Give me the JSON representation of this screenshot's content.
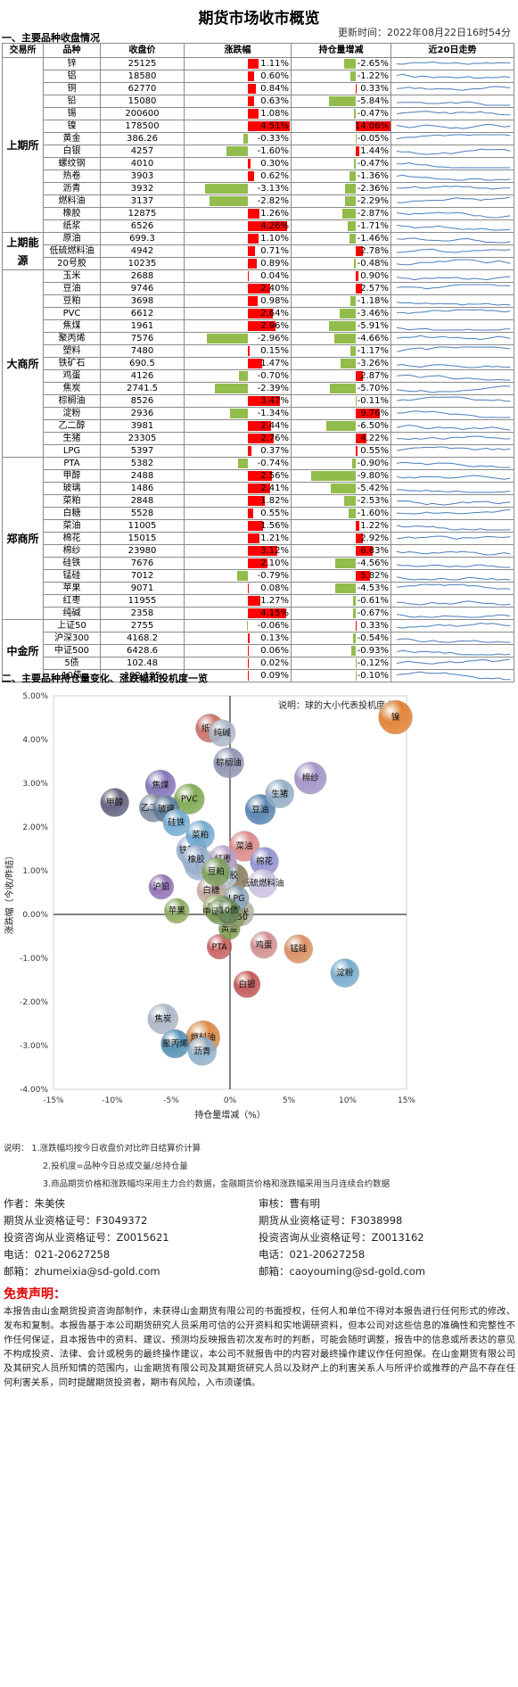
{
  "title": "期货市场收市概览",
  "update_time": "更新时间：2022年08月22日16时54分",
  "section1_title": "一、主要品种收盘情况",
  "section2_title": "二、主要品种持仓量变化、涨跌幅和投机度一览",
  "table": {
    "headers": [
      "交易所",
      "品种",
      "收盘价",
      "涨跌幅",
      "持仓量增减",
      "近20日走势"
    ],
    "groups": [
      {
        "exchange": "上期所",
        "rows": [
          {
            "name": "锌",
            "price": "25125",
            "pct": "1.11%",
            "oi": "-2.65%"
          },
          {
            "name": "铝",
            "price": "18580",
            "pct": "0.60%",
            "oi": "-1.22%"
          },
          {
            "name": "铜",
            "price": "62770",
            "pct": "0.84%",
            "oi": "0.33%"
          },
          {
            "name": "铅",
            "price": "15080",
            "pct": "0.63%",
            "oi": "-5.84%"
          },
          {
            "name": "锡",
            "price": "200600",
            "pct": "1.08%",
            "oi": "-0.47%"
          },
          {
            "name": "镍",
            "price": "178500",
            "pct": "4.51%",
            "oi": "14.06%"
          },
          {
            "name": "黄金",
            "price": "386.26",
            "pct": "-0.33%",
            "oi": "-0.05%"
          },
          {
            "name": "白银",
            "price": "4257",
            "pct": "-1.60%",
            "oi": "1.44%"
          },
          {
            "name": "螺纹钢",
            "price": "4010",
            "pct": "0.30%",
            "oi": "-0.47%"
          },
          {
            "name": "热卷",
            "price": "3903",
            "pct": "0.62%",
            "oi": "-1.36%"
          },
          {
            "name": "沥青",
            "price": "3932",
            "pct": "-3.13%",
            "oi": "-2.36%"
          },
          {
            "name": "燃料油",
            "price": "3137",
            "pct": "-2.82%",
            "oi": "-2.29%"
          },
          {
            "name": "橡胶",
            "price": "12875",
            "pct": "1.26%",
            "oi": "-2.87%"
          },
          {
            "name": "纸浆",
            "price": "6526",
            "pct": "4.26%",
            "oi": "-1.71%"
          }
        ]
      },
      {
        "exchange": "上期能源",
        "rows": [
          {
            "name": "原油",
            "price": "699.3",
            "pct": "1.10%",
            "oi": "-1.46%"
          },
          {
            "name": "低硫燃料油",
            "price": "4942",
            "pct": "0.71%",
            "oi": "2.78%"
          },
          {
            "name": "20号胶",
            "price": "10235",
            "pct": "0.89%",
            "oi": "-0.48%"
          }
        ]
      },
      {
        "exchange": "大商所",
        "rows": [
          {
            "name": "玉米",
            "price": "2688",
            "pct": "0.04%",
            "oi": "0.90%"
          },
          {
            "name": "豆油",
            "price": "9746",
            "pct": "2.40%",
            "oi": "2.57%"
          },
          {
            "name": "豆粕",
            "price": "3698",
            "pct": "0.98%",
            "oi": "-1.18%"
          },
          {
            "name": "PVC",
            "price": "6612",
            "pct": "2.64%",
            "oi": "-3.46%"
          },
          {
            "name": "焦煤",
            "price": "1961",
            "pct": "2.96%",
            "oi": "-5.91%"
          },
          {
            "name": "聚丙烯",
            "price": "7576",
            "pct": "-2.96%",
            "oi": "-4.66%"
          },
          {
            "name": "塑料",
            "price": "7480",
            "pct": "0.15%",
            "oi": "-1.17%"
          },
          {
            "name": "铁矿石",
            "price": "690.5",
            "pct": "1.47%",
            "oi": "-3.26%"
          },
          {
            "name": "鸡蛋",
            "price": "4126",
            "pct": "-0.70%",
            "oi": "2.87%"
          },
          {
            "name": "焦炭",
            "price": "2741.5",
            "pct": "-2.39%",
            "oi": "-5.70%"
          },
          {
            "name": "棕榈油",
            "price": "8526",
            "pct": "3.47%",
            "oi": "-0.11%"
          },
          {
            "name": "淀粉",
            "price": "2936",
            "pct": "-1.34%",
            "oi": "9.76%"
          },
          {
            "name": "乙二醇",
            "price": "3981",
            "pct": "2.44%",
            "oi": "-6.50%"
          },
          {
            "name": "生猪",
            "price": "23305",
            "pct": "2.76%",
            "oi": "4.22%"
          },
          {
            "name": "LPG",
            "price": "5397",
            "pct": "0.37%",
            "oi": "0.55%"
          }
        ]
      },
      {
        "exchange": "郑商所",
        "rows": [
          {
            "name": "PTA",
            "price": "5382",
            "pct": "-0.74%",
            "oi": "-0.90%"
          },
          {
            "name": "甲醇",
            "price": "2488",
            "pct": "2.56%",
            "oi": "-9.80%"
          },
          {
            "name": "玻璃",
            "price": "1486",
            "pct": "2.41%",
            "oi": "-5.42%"
          },
          {
            "name": "菜粕",
            "price": "2848",
            "pct": "1.82%",
            "oi": "-2.53%"
          },
          {
            "name": "白糖",
            "price": "5528",
            "pct": "0.55%",
            "oi": "-1.60%"
          },
          {
            "name": "菜油",
            "price": "11005",
            "pct": "1.56%",
            "oi": "1.22%"
          },
          {
            "name": "棉花",
            "price": "15015",
            "pct": "1.21%",
            "oi": "2.92%"
          },
          {
            "name": "棉纱",
            "price": "23980",
            "pct": "3.12%",
            "oi": "6.83%"
          },
          {
            "name": "硅铁",
            "price": "7676",
            "pct": "2.10%",
            "oi": "-4.56%"
          },
          {
            "name": "锰硅",
            "price": "7012",
            "pct": "-0.79%",
            "oi": "5.82%"
          },
          {
            "name": "苹果",
            "price": "9071",
            "pct": "0.08%",
            "oi": "-4.53%"
          },
          {
            "name": "红枣",
            "price": "11955",
            "pct": "1.27%",
            "oi": "-0.61%"
          },
          {
            "name": "纯碱",
            "price": "2358",
            "pct": "4.15%",
            "oi": "-0.67%"
          }
        ]
      },
      {
        "exchange": "中金所",
        "rows": [
          {
            "name": "上证50",
            "price": "2755",
            "pct": "-0.06%",
            "oi": "0.33%"
          },
          {
            "name": "沪深300",
            "price": "4168.2",
            "pct": "0.13%",
            "oi": "-0.54%"
          },
          {
            "name": "中证500",
            "price": "6428.6",
            "pct": "0.06%",
            "oi": "-0.93%"
          },
          {
            "name": "5债",
            "price": "102.48",
            "pct": "0.02%",
            "oi": "-0.12%"
          },
          {
            "name": "10债",
            "price": "102.195",
            "pct": "0.09%",
            "oi": "-0.10%"
          }
        ]
      }
    ]
  },
  "chart_data": {
    "type": "scatter",
    "note": "说明：球的大小代表投机度大小",
    "xlabel": "持仓量增减（%）",
    "ylabel": "涨跌幅（今收/昨结）",
    "xlim": [
      -15,
      15
    ],
    "ylim": [
      -4,
      5
    ],
    "x_ticks": [
      "-15%",
      "-10%",
      "-5%",
      "0%",
      "5%",
      "10%",
      "15%"
    ],
    "y_ticks": [
      "-4.00%",
      "-3.00%",
      "-2.00%",
      "-1.00%",
      "0.00%",
      "1.00%",
      "2.00%",
      "3.00%",
      "4.00%",
      "5.00%"
    ],
    "grid": false,
    "points": [
      {
        "label": "镍",
        "x": 14.06,
        "y": 4.51,
        "size": 1.3,
        "color": "#e07b2a"
      },
      {
        "label": "纸浆",
        "x": -1.71,
        "y": 4.26,
        "size": 1.0,
        "color": "#c66b63"
      },
      {
        "label": "沪铅",
        "x": -5.84,
        "y": 0.63,
        "size": 0.8,
        "color": "#8e6bb0"
      },
      {
        "label": "焦煤",
        "x": -5.91,
        "y": 2.96,
        "size": 1.1,
        "color": "#7e6fb6"
      },
      {
        "label": "棕榈油",
        "x": -0.11,
        "y": 3.47,
        "size": 1.1,
        "color": "#8a8fb0"
      },
      {
        "label": "锰硅",
        "x": 5.82,
        "y": -0.79,
        "size": 1.0,
        "color": "#d98a5a"
      },
      {
        "label": "棉纱",
        "x": 6.83,
        "y": 3.12,
        "size": 1.2,
        "color": "#9f8fc6"
      },
      {
        "label": "淀粉",
        "x": 9.76,
        "y": -1.34,
        "size": 1.0,
        "color": "#6fa8c9"
      },
      {
        "label": "甲醇",
        "x": -9.8,
        "y": 2.56,
        "size": 1.0,
        "color": "#5a5a78"
      },
      {
        "label": "PVC",
        "x": -3.46,
        "y": 2.64,
        "size": 1.1,
        "color": "#7aa64a"
      },
      {
        "label": "乙二醇",
        "x": -6.5,
        "y": 2.44,
        "size": 1.0,
        "color": "#7c8a9c"
      },
      {
        "label": "豆油",
        "x": 2.57,
        "y": 2.4,
        "size": 1.1,
        "color": "#4f7fae"
      },
      {
        "label": "菜油",
        "x": 1.22,
        "y": 1.56,
        "size": 1.1,
        "color": "#d98585"
      },
      {
        "label": "玻璃",
        "x": -5.42,
        "y": 2.41,
        "size": 0.9,
        "color": "#5b7a99"
      },
      {
        "label": "生猪",
        "x": 4.22,
        "y": 2.76,
        "size": 1.0,
        "color": "#8fa9c4"
      },
      {
        "label": "焦炭",
        "x": -5.7,
        "y": -2.39,
        "size": 1.1,
        "color": "#a7b4c4"
      },
      {
        "label": "燃料油",
        "x": -2.29,
        "y": -2.82,
        "size": 1.3,
        "color": "#d8843a"
      },
      {
        "label": "沥青",
        "x": -2.36,
        "y": -3.13,
        "size": 1.0,
        "color": "#8aaecb"
      },
      {
        "label": "聚丙烯",
        "x": -4.66,
        "y": -2.96,
        "size": 1.0,
        "color": "#4d8db0"
      },
      {
        "label": "硅铁",
        "x": -4.56,
        "y": 2.1,
        "size": 0.9,
        "color": "#6fa8cf"
      },
      {
        "label": "铁矿石",
        "x": -3.26,
        "y": 1.47,
        "size": 1.1,
        "color": "#9aaed0"
      },
      {
        "label": "白银",
        "x": 1.44,
        "y": -1.6,
        "size": 0.9,
        "color": "#c0504d"
      },
      {
        "label": "鸡蛋",
        "x": 2.87,
        "y": -0.7,
        "size": 0.9,
        "color": "#d08a8a"
      },
      {
        "label": "纯碱",
        "x": -0.67,
        "y": 4.15,
        "size": 0.9,
        "color": "#a8b4c6"
      },
      {
        "label": "棉花",
        "x": 2.92,
        "y": 1.21,
        "size": 1.0,
        "color": "#8e8ed0"
      },
      {
        "label": "低硫燃料油",
        "x": 2.78,
        "y": 0.71,
        "size": 1.0,
        "color": "#c8c0e0"
      },
      {
        "label": "PTA",
        "x": -0.9,
        "y": -0.74,
        "size": 0.8,
        "color": "#c85a5a"
      },
      {
        "label": "菜粕",
        "x": -2.53,
        "y": 1.82,
        "size": 1.0,
        "color": "#6fa8cf"
      },
      {
        "label": "苹果",
        "x": -4.53,
        "y": 0.08,
        "size": 0.8,
        "color": "#8aa85a"
      },
      {
        "label": "黄金",
        "x": -0.05,
        "y": -0.33,
        "size": 0.6,
        "color": "#7c9a4a"
      },
      {
        "label": "铜",
        "x": 0.33,
        "y": 0.84,
        "size": 1.0,
        "color": "#8a7a5a"
      },
      {
        "label": "锌",
        "x": -2.65,
        "y": 1.11,
        "size": 1.0,
        "color": "#9ab0cf"
      },
      {
        "label": "铝",
        "x": -1.22,
        "y": 0.6,
        "size": 0.9,
        "color": "#aac47a"
      },
      {
        "label": "锡",
        "x": -0.47,
        "y": 1.08,
        "size": 0.9,
        "color": "#a6a6a6"
      },
      {
        "label": "螺纹钢",
        "x": -0.47,
        "y": 0.3,
        "size": 1.2,
        "color": "#8ea65a"
      },
      {
        "label": "热卷",
        "x": -1.36,
        "y": 0.62,
        "size": 1.0,
        "color": "#b4c98a"
      },
      {
        "label": "原油",
        "x": -1.46,
        "y": 1.1,
        "size": 1.1,
        "color": "#b4c8a0"
      },
      {
        "label": "橡胶",
        "x": -2.87,
        "y": 1.26,
        "size": 1.0,
        "color": "#9ab0cf"
      },
      {
        "label": "20号胶",
        "x": -0.48,
        "y": 0.89,
        "size": 0.9,
        "color": "#c0cfe0"
      },
      {
        "label": "白糖",
        "x": -1.6,
        "y": 0.55,
        "size": 1.0,
        "color": "#c4a8a0"
      },
      {
        "label": "红枣",
        "x": -0.61,
        "y": 1.27,
        "size": 0.9,
        "color": "#b8a0c8"
      },
      {
        "label": "塑料",
        "x": -1.17,
        "y": 0.15,
        "size": 0.9,
        "color": "#a0b070"
      },
      {
        "label": "玉米",
        "x": 0.9,
        "y": 0.04,
        "size": 0.9,
        "color": "#b0b0a0"
      },
      {
        "label": "LPG",
        "x": 0.55,
        "y": 0.37,
        "size": 0.8,
        "color": "#88a0b8"
      },
      {
        "label": "豆粕",
        "x": -1.18,
        "y": 0.98,
        "size": 1.0,
        "color": "#7ba05a"
      },
      {
        "label": "上证50",
        "x": 0.33,
        "y": -0.06,
        "size": 0.7,
        "color": "#8a9a6a"
      },
      {
        "label": "沪深300",
        "x": -0.54,
        "y": 0.13,
        "size": 0.8,
        "color": "#6a8a5a"
      },
      {
        "label": "中证500",
        "x": -0.93,
        "y": 0.06,
        "size": 0.8,
        "color": "#7a9a5a"
      },
      {
        "label": "5债",
        "x": -0.12,
        "y": 0.02,
        "size": 0.6,
        "color": "#5a7a4a"
      },
      {
        "label": "10债",
        "x": -0.1,
        "y": 0.09,
        "size": 0.6,
        "color": "#6a8a5a"
      }
    ]
  },
  "notes": [
    "说明：  1.涨跌幅均按今日收盘价对比昨日结算价计算",
    "2.投机度=品种今日总成交量/总持仓量",
    "3.商品期货价格和涨跌幅均采用主力合约数据，金融期货价格和涨跌幅采用当月连续合约数据"
  ],
  "author_left": [
    "作者：朱美侠",
    "期货从业资格证号：F3049372",
    "投资咨询从业资格证号：Z0015621",
    "电话：021-20627258",
    "邮箱：zhumeixia@sd-gold.com"
  ],
  "author_right": [
    "审核：曹有明",
    "期货从业资格证号：F3038998",
    "投资咨询从业资格证号：Z0013162",
    "电话：021-20627258",
    "邮箱：caoyouming@sd-gold.com"
  ],
  "disclaimer_title": "免责声明：",
  "disclaimer": "本报告由山金期货投资咨询部制作，未获得山金期货有限公司的书面授权，任何人和单位不得对本报告进行任何形式的修改、发布和复制。本报告基于本公司期货研究人员采用可信的公开资料和实地调研资料，但本公司对这些信息的准确性和完整性不作任何保证，且本报告中的资料、建议、预测均反映报告初次发布时的判断，可能会随时调整，报告中的信息或所表达的意见不构成投资、法律、会计或税务的最终操作建议，本公司不就报告中的内容对最终操作建议作任何担保。在山金期货有限公司及其研究人员所知情的范围内，山金期货有限公司及其期货研究人员以及财产上的利害关系人与所评价或推荐的产品不存在任何利害关系，同时提醒期货投资者，期市有风险，入市须谨慎。"
}
